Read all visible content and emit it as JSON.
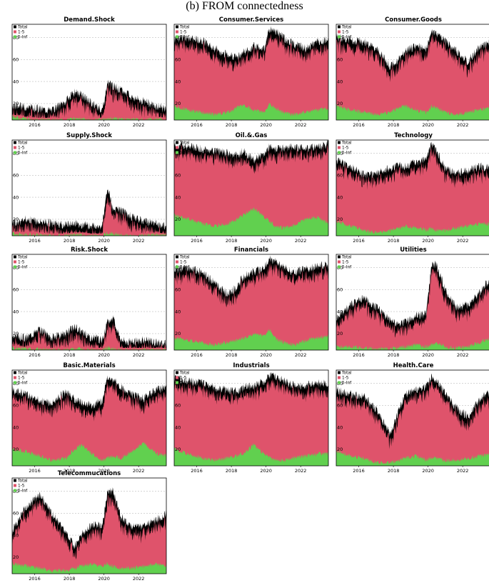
{
  "figure": {
    "title": "(b) FROM connectedness"
  },
  "colors": {
    "total": "#000000",
    "short": "#df536b",
    "long": "#61d04f",
    "grid": "#bdbdbd"
  },
  "chart_data": [
    {
      "type": "area",
      "title": "Demand.Shock",
      "legend": [
        "Total",
        "1-5",
        "5-Inf"
      ],
      "xticks": [
        "2016",
        "2018",
        "2020",
        "2022"
      ],
      "yticks": [
        20,
        40,
        60,
        80
      ],
      "ylim": [
        5,
        92
      ],
      "xlim": [
        2014.7,
        2023.6
      ],
      "x": [
        2014.7,
        2015.5,
        2016.3,
        2017.0,
        2017.8,
        2018.3,
        2018.7,
        2019.3,
        2019.9,
        2020.2,
        2020.5,
        2021.0,
        2021.6,
        2022.3,
        2023.0,
        2023.6
      ],
      "total": [
        18,
        17,
        15,
        14,
        22,
        30,
        28,
        20,
        14,
        38,
        36,
        32,
        26,
        22,
        18,
        14
      ],
      "long": [
        8,
        6,
        5,
        5,
        5,
        6,
        6,
        5,
        5,
        7,
        6,
        6,
        5,
        5,
        6,
        5
      ]
    },
    {
      "type": "area",
      "title": "Consumer.Services",
      "legend": [
        "Total",
        "1-5",
        "5-Inf"
      ],
      "xticks": [
        "2016",
        "2018",
        "2020",
        "2022"
      ],
      "yticks": [
        20,
        40,
        60,
        80
      ],
      "ylim": [
        5,
        92
      ],
      "xlim": [
        2014.7,
        2023.6
      ],
      "x": [
        2014.7,
        2015.5,
        2016.3,
        2017.0,
        2017.8,
        2018.3,
        2018.7,
        2019.3,
        2019.9,
        2020.2,
        2020.5,
        2021.0,
        2021.6,
        2022.3,
        2023.0,
        2023.6
      ],
      "total": [
        78,
        80,
        77,
        70,
        64,
        62,
        66,
        72,
        70,
        88,
        86,
        80,
        74,
        70,
        76,
        78
      ],
      "long": [
        18,
        14,
        12,
        10,
        12,
        16,
        18,
        14,
        12,
        20,
        16,
        12,
        10,
        12,
        14,
        16
      ]
    },
    {
      "type": "area",
      "title": "Consumer.Goods",
      "legend": [
        "Total",
        "1-5",
        "5-Inf"
      ],
      "xticks": [
        "2016",
        "2018",
        "2020",
        "2022"
      ],
      "yticks": [
        20,
        40,
        60,
        80
      ],
      "ylim": [
        5,
        92
      ],
      "xlim": [
        2014.7,
        2023.6
      ],
      "x": [
        2014.7,
        2015.5,
        2016.3,
        2017.0,
        2017.8,
        2018.3,
        2018.7,
        2019.3,
        2019.9,
        2020.2,
        2020.5,
        2021.0,
        2021.6,
        2022.3,
        2023.0,
        2023.6
      ],
      "total": [
        80,
        78,
        76,
        70,
        54,
        60,
        68,
        72,
        70,
        86,
        84,
        76,
        68,
        58,
        72,
        76
      ],
      "long": [
        18,
        14,
        12,
        10,
        12,
        16,
        18,
        14,
        12,
        18,
        16,
        12,
        10,
        12,
        14,
        16
      ]
    },
    {
      "type": "area",
      "title": "Supply.Shock",
      "legend": [
        "Total",
        "1-5",
        "5-Inf"
      ],
      "xticks": [
        "2016",
        "2018",
        "2020",
        "2022"
      ],
      "yticks": [
        20,
        40,
        60,
        80
      ],
      "ylim": [
        5,
        92
      ],
      "xlim": [
        2014.7,
        2023.6
      ],
      "x": [
        2014.7,
        2015.5,
        2016.3,
        2017.0,
        2017.8,
        2018.3,
        2018.7,
        2019.3,
        2019.9,
        2020.2,
        2020.5,
        2021.0,
        2021.6,
        2022.3,
        2023.0,
        2023.6
      ],
      "total": [
        16,
        20,
        18,
        16,
        15,
        16,
        15,
        14,
        14,
        50,
        30,
        28,
        22,
        18,
        16,
        14
      ],
      "long": [
        7,
        6,
        6,
        5,
        5,
        6,
        6,
        5,
        5,
        8,
        7,
        6,
        5,
        5,
        6,
        5
      ]
    },
    {
      "type": "area",
      "title": "Oil.&.Gas",
      "legend": [
        "Total",
        "1-5",
        "5-Inf"
      ],
      "xticks": [
        "2016",
        "2018",
        "2020",
        "2022"
      ],
      "yticks": [
        20,
        40,
        60,
        80
      ],
      "ylim": [
        5,
        92
      ],
      "xlim": [
        2014.7,
        2023.6
      ],
      "x": [
        2014.7,
        2015.5,
        2016.3,
        2017.0,
        2017.8,
        2018.3,
        2018.7,
        2019.3,
        2019.9,
        2020.2,
        2020.5,
        2021.0,
        2021.6,
        2022.3,
        2023.0,
        2023.6
      ],
      "total": [
        88,
        86,
        84,
        82,
        80,
        78,
        82,
        74,
        80,
        86,
        84,
        84,
        86,
        84,
        86,
        88
      ],
      "long": [
        24,
        20,
        16,
        14,
        16,
        20,
        24,
        30,
        22,
        18,
        14,
        12,
        14,
        20,
        22,
        16
      ]
    },
    {
      "type": "area",
      "title": "Technology",
      "legend": [
        "Total",
        "1-5",
        "5-Inf"
      ],
      "xticks": [
        "2016",
        "2018",
        "2020",
        "2022"
      ],
      "yticks": [
        20,
        40,
        60,
        80
      ],
      "ylim": [
        5,
        92
      ],
      "xlim": [
        2014.7,
        2023.6
      ],
      "x": [
        2014.7,
        2015.5,
        2016.3,
        2017.0,
        2017.8,
        2018.3,
        2018.7,
        2019.3,
        2019.9,
        2020.2,
        2020.5,
        2021.0,
        2021.6,
        2022.3,
        2023.0,
        2023.6
      ],
      "total": [
        74,
        68,
        60,
        62,
        66,
        70,
        68,
        72,
        74,
        88,
        82,
        66,
        62,
        64,
        68,
        66
      ],
      "long": [
        18,
        14,
        10,
        8,
        10,
        12,
        14,
        12,
        10,
        12,
        10,
        10,
        12,
        14,
        16,
        16
      ]
    },
    {
      "type": "area",
      "title": "Risk.Shock",
      "legend": [
        "Total",
        "1-5",
        "5-Inf"
      ],
      "xticks": [
        "2016",
        "2018",
        "2020",
        "2022"
      ],
      "yticks": [
        20,
        40,
        60,
        80
      ],
      "ylim": [
        5,
        92
      ],
      "xlim": [
        2014.7,
        2023.6
      ],
      "x": [
        2014.7,
        2015.5,
        2016.3,
        2017.0,
        2017.8,
        2018.3,
        2018.7,
        2019.3,
        2019.9,
        2020.2,
        2020.5,
        2021.0,
        2021.6,
        2022.3,
        2023.0,
        2023.6
      ],
      "total": [
        18,
        16,
        24,
        16,
        20,
        26,
        22,
        16,
        14,
        30,
        34,
        14,
        12,
        14,
        12,
        10
      ],
      "long": [
        7,
        6,
        6,
        5,
        5,
        6,
        6,
        5,
        5,
        7,
        6,
        5,
        5,
        5,
        5,
        5
      ]
    },
    {
      "type": "area",
      "title": "Financials",
      "legend": [
        "Total",
        "1-5",
        "5-Inf"
      ],
      "xticks": [
        "2016",
        "2018",
        "2020",
        "2022"
      ],
      "yticks": [
        20,
        40,
        60,
        80
      ],
      "ylim": [
        5,
        92
      ],
      "xlim": [
        2014.7,
        2023.6
      ],
      "x": [
        2014.7,
        2015.5,
        2016.3,
        2017.0,
        2017.8,
        2018.3,
        2018.7,
        2019.3,
        2019.9,
        2020.2,
        2020.5,
        2021.0,
        2021.6,
        2022.3,
        2023.0,
        2023.6
      ],
      "total": [
        78,
        80,
        76,
        66,
        56,
        62,
        72,
        76,
        80,
        88,
        86,
        80,
        76,
        78,
        82,
        82
      ],
      "long": [
        16,
        14,
        12,
        10,
        12,
        14,
        16,
        20,
        18,
        24,
        16,
        12,
        10,
        14,
        16,
        18
      ]
    },
    {
      "type": "area",
      "title": "Utilities",
      "legend": [
        "Total",
        "1-5",
        "5-Inf"
      ],
      "xticks": [
        "2016",
        "2018",
        "2020",
        "2022"
      ],
      "yticks": [
        20,
        40,
        60,
        80
      ],
      "ylim": [
        5,
        92
      ],
      "xlim": [
        2014.7,
        2023.6
      ],
      "x": [
        2014.7,
        2015.5,
        2016.3,
        2017.0,
        2017.8,
        2018.3,
        2018.7,
        2019.3,
        2019.9,
        2020.2,
        2020.5,
        2021.0,
        2021.6,
        2022.3,
        2023.0,
        2023.6
      ],
      "total": [
        34,
        46,
        52,
        44,
        32,
        28,
        30,
        36,
        38,
        84,
        82,
        60,
        44,
        46,
        58,
        70
      ],
      "long": [
        8,
        8,
        7,
        6,
        6,
        7,
        8,
        10,
        8,
        10,
        12,
        8,
        7,
        8,
        12,
        16
      ]
    },
    {
      "type": "area",
      "title": "Basic.Materials",
      "legend": [
        "Total",
        "1-5",
        "5-Inf"
      ],
      "xticks": [
        "2016",
        "2018",
        "2020",
        "2022"
      ],
      "yticks": [
        20,
        40,
        60,
        80
      ],
      "ylim": [
        5,
        92
      ],
      "xlim": [
        2014.7,
        2023.6
      ],
      "x": [
        2014.7,
        2015.5,
        2016.3,
        2017.0,
        2017.8,
        2018.3,
        2018.7,
        2019.3,
        2019.9,
        2020.2,
        2020.5,
        2021.0,
        2021.6,
        2022.3,
        2023.0,
        2023.6
      ],
      "total": [
        74,
        70,
        64,
        62,
        72,
        66,
        62,
        60,
        64,
        86,
        84,
        76,
        70,
        66,
        74,
        76
      ],
      "long": [
        20,
        18,
        14,
        10,
        12,
        20,
        24,
        16,
        10,
        12,
        14,
        12,
        18,
        26,
        16,
        14
      ]
    },
    {
      "type": "area",
      "title": "Industrials",
      "legend": [
        "Total",
        "1-5",
        "5-Inf"
      ],
      "xticks": [
        "2016",
        "2018",
        "2020",
        "2022"
      ],
      "yticks": [
        20,
        40,
        60,
        80
      ],
      "ylim": [
        5,
        92
      ],
      "xlim": [
        2014.7,
        2023.6
      ],
      "x": [
        2014.7,
        2015.5,
        2016.3,
        2017.0,
        2017.8,
        2018.3,
        2018.7,
        2019.3,
        2019.9,
        2020.2,
        2020.5,
        2021.0,
        2021.6,
        2022.3,
        2023.0,
        2023.6
      ],
      "total": [
        84,
        82,
        80,
        76,
        74,
        72,
        76,
        78,
        82,
        88,
        86,
        82,
        78,
        78,
        80,
        80
      ],
      "long": [
        20,
        16,
        12,
        10,
        12,
        14,
        16,
        24,
        16,
        12,
        10,
        10,
        12,
        14,
        16,
        16
      ]
    },
    {
      "type": "area",
      "title": "Health.Care",
      "legend": [
        "Total",
        "1-5",
        "5-Inf"
      ],
      "xticks": [
        "2016",
        "2018",
        "2020",
        "2022"
      ],
      "yticks": [
        20,
        40,
        60,
        80
      ],
      "ylim": [
        5,
        92
      ],
      "xlim": [
        2014.7,
        2023.6
      ],
      "x": [
        2014.7,
        2015.5,
        2016.3,
        2017.0,
        2017.8,
        2018.3,
        2018.7,
        2019.3,
        2019.9,
        2020.2,
        2020.5,
        2021.0,
        2021.6,
        2022.3,
        2023.0,
        2023.6
      ],
      "total": [
        74,
        70,
        68,
        56,
        34,
        54,
        70,
        74,
        76,
        86,
        82,
        70,
        58,
        50,
        66,
        72
      ],
      "long": [
        18,
        14,
        12,
        8,
        8,
        10,
        12,
        14,
        10,
        12,
        12,
        10,
        10,
        12,
        14,
        16
      ]
    },
    {
      "type": "area",
      "title": "Telecommucations",
      "legend": [
        "Total",
        "1-5",
        "5-Inf"
      ],
      "xticks": [
        "2016",
        "2018",
        "2020",
        "2022"
      ],
      "yticks": [
        20,
        40,
        60,
        80
      ],
      "ylim": [
        5,
        92
      ],
      "xlim": [
        2014.7,
        2023.6
      ],
      "x": [
        2014.7,
        2015.5,
        2016.3,
        2017.0,
        2017.8,
        2018.3,
        2018.7,
        2019.3,
        2019.9,
        2020.2,
        2020.5,
        2021.0,
        2021.6,
        2022.3,
        2023.0,
        2023.6
      ],
      "total": [
        44,
        66,
        76,
        60,
        42,
        30,
        40,
        50,
        48,
        80,
        80,
        56,
        48,
        48,
        54,
        60
      ],
      "long": [
        14,
        12,
        10,
        8,
        8,
        10,
        12,
        14,
        12,
        14,
        12,
        10,
        10,
        12,
        14,
        12
      ]
    }
  ]
}
